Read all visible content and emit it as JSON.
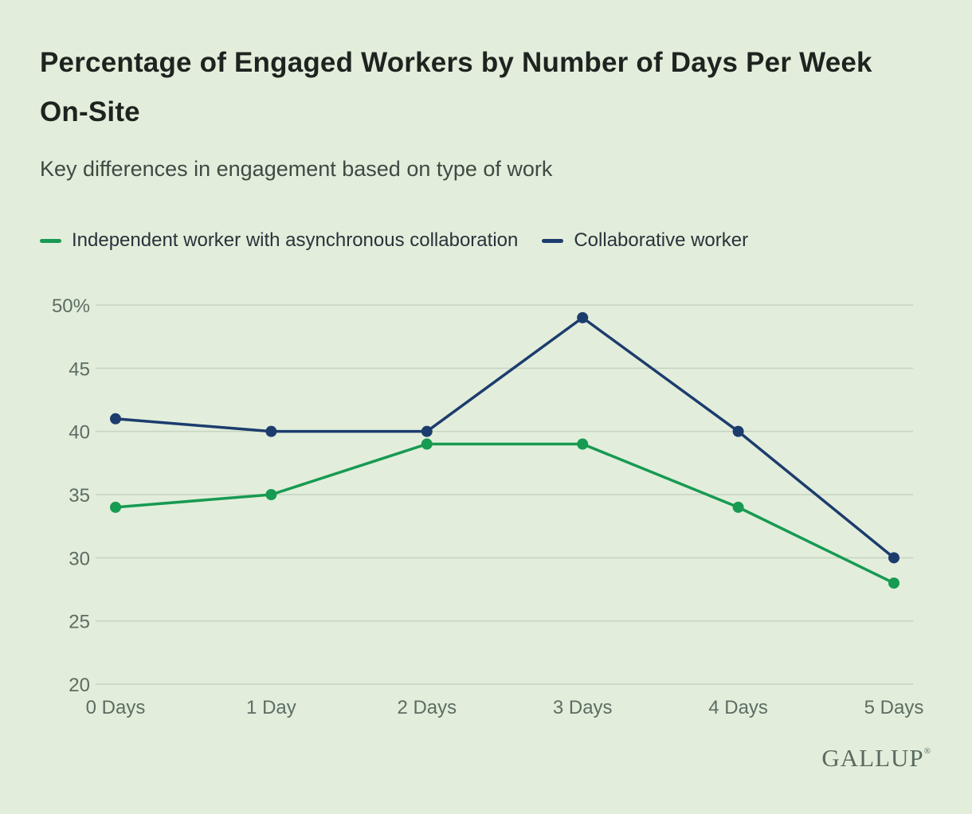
{
  "branding": {
    "logo": "GALLUP",
    "registered": "®"
  },
  "chart_data": {
    "type": "line",
    "title": "Percentage of Engaged Workers by Number of Days Per Week On-Site",
    "subtitle": "Key differences in engagement based on type of work",
    "categories": [
      "0 Days",
      "1 Day",
      "2 Days",
      "3 Days",
      "4 Days",
      "5 Days"
    ],
    "series": [
      {
        "name": "Independent worker with asynchronous collaboration",
        "color": "#179a52",
        "values": [
          34,
          35,
          39,
          39,
          34,
          28
        ]
      },
      {
        "name": "Collaborative worker",
        "color": "#1d3c6e",
        "values": [
          41,
          40,
          40,
          49,
          40,
          30
        ]
      }
    ],
    "ylim": [
      20,
      50
    ],
    "ytick_step": 5,
    "ytick_labels": [
      "20",
      "25",
      "30",
      "35",
      "40",
      "45",
      "50%"
    ],
    "grid": true,
    "legend_position": "top",
    "colors": {
      "background": "#e2eedb",
      "gridline": "#c6d4c0",
      "axis_text": "#5d6d64"
    }
  }
}
